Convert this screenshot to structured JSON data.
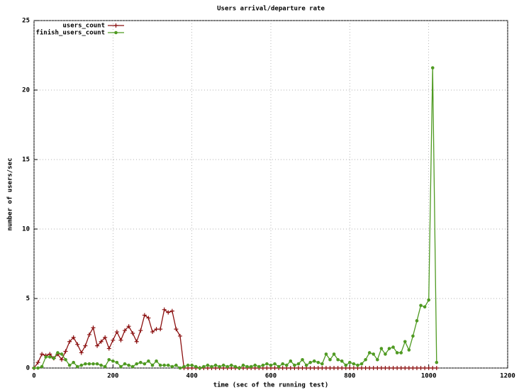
{
  "chart_data": {
    "type": "line",
    "title": "Users arrival/departure rate",
    "xlabel": "time (sec of the running test)",
    "ylabel": "number of users/sec",
    "x": [
      0,
      10,
      20,
      30,
      40,
      50,
      60,
      70,
      80,
      90,
      100,
      110,
      120,
      130,
      140,
      150,
      160,
      170,
      180,
      190,
      200,
      210,
      220,
      230,
      240,
      250,
      260,
      270,
      280,
      290,
      300,
      310,
      320,
      330,
      340,
      350,
      360,
      370,
      380,
      390,
      400,
      410,
      420,
      430,
      440,
      450,
      460,
      470,
      480,
      490,
      500,
      510,
      520,
      530,
      540,
      550,
      560,
      570,
      580,
      590,
      600,
      610,
      620,
      630,
      640,
      650,
      660,
      670,
      680,
      690,
      700,
      710,
      720,
      730,
      740,
      750,
      760,
      770,
      780,
      790,
      800,
      810,
      820,
      830,
      840,
      850,
      860,
      870,
      880,
      890,
      900,
      910,
      920,
      930,
      940,
      950,
      960,
      970,
      980,
      990,
      1000,
      1010,
      1020
    ],
    "series": [
      {
        "name": "users_count",
        "color": "#8b1010",
        "marker": "plus",
        "values": [
          0,
          0.4,
          1.0,
          0.9,
          1.0,
          0.7,
          1.0,
          0.6,
          1.2,
          1.9,
          2.2,
          1.7,
          1.1,
          1.6,
          2.4,
          2.9,
          1.6,
          1.9,
          2.2,
          1.4,
          2.0,
          2.6,
          2.0,
          2.7,
          3.0,
          2.5,
          1.9,
          2.7,
          3.8,
          3.6,
          2.6,
          2.8,
          2.8,
          4.2,
          4.0,
          4.1,
          2.8,
          2.3,
          0,
          0,
          0,
          0,
          0,
          0,
          0,
          0,
          0,
          0,
          0,
          0,
          0,
          0,
          0,
          0,
          0,
          0,
          0,
          0,
          0,
          0,
          0,
          0,
          0,
          0,
          0,
          0,
          0,
          0,
          0,
          0,
          0,
          0,
          0,
          0,
          0,
          0,
          0,
          0,
          0,
          0,
          0,
          0,
          0,
          0,
          0,
          0,
          0,
          0,
          0,
          0,
          0,
          0,
          0,
          0,
          0,
          0,
          0,
          0,
          0,
          0,
          0,
          0,
          0
        ]
      },
      {
        "name": "finish_users_count",
        "color": "#4f9a22",
        "marker": "circle",
        "values": [
          0,
          0,
          0.1,
          0.8,
          0.8,
          0.7,
          1.1,
          1.0,
          0.6,
          0.2,
          0.4,
          0.1,
          0.2,
          0.3,
          0.3,
          0.3,
          0.3,
          0.2,
          0.1,
          0.6,
          0.5,
          0.4,
          0.1,
          0.3,
          0.2,
          0.1,
          0.3,
          0.4,
          0.3,
          0.5,
          0.2,
          0.5,
          0.2,
          0.2,
          0.2,
          0.1,
          0.2,
          0,
          0.1,
          0.2,
          0.2,
          0.1,
          0,
          0.1,
          0.2,
          0.1,
          0.2,
          0.1,
          0.2,
          0.1,
          0.2,
          0.1,
          0,
          0.2,
          0.1,
          0.1,
          0.2,
          0.1,
          0.2,
          0.3,
          0.2,
          0.3,
          0.1,
          0.3,
          0.2,
          0.5,
          0.2,
          0.3,
          0.6,
          0.2,
          0.4,
          0.5,
          0.4,
          0.3,
          1.0,
          0.6,
          1.0,
          0.6,
          0.5,
          0.2,
          0.4,
          0.3,
          0.2,
          0.3,
          0.6,
          1.1,
          1.0,
          0.6,
          1.4,
          1.0,
          1.4,
          1.5,
          1.1,
          1.1,
          1.9,
          1.3,
          2.3,
          3.4,
          4.5,
          4.4,
          4.9,
          21.6,
          0.4
        ]
      }
    ],
    "xlim": [
      0,
      1200
    ],
    "xticks": [
      0,
      200,
      400,
      600,
      800,
      1000,
      1200
    ],
    "ylim": [
      0,
      25
    ],
    "yticks": [
      0,
      5,
      10,
      15,
      20,
      25
    ],
    "grid": true,
    "legend": "top-left"
  }
}
